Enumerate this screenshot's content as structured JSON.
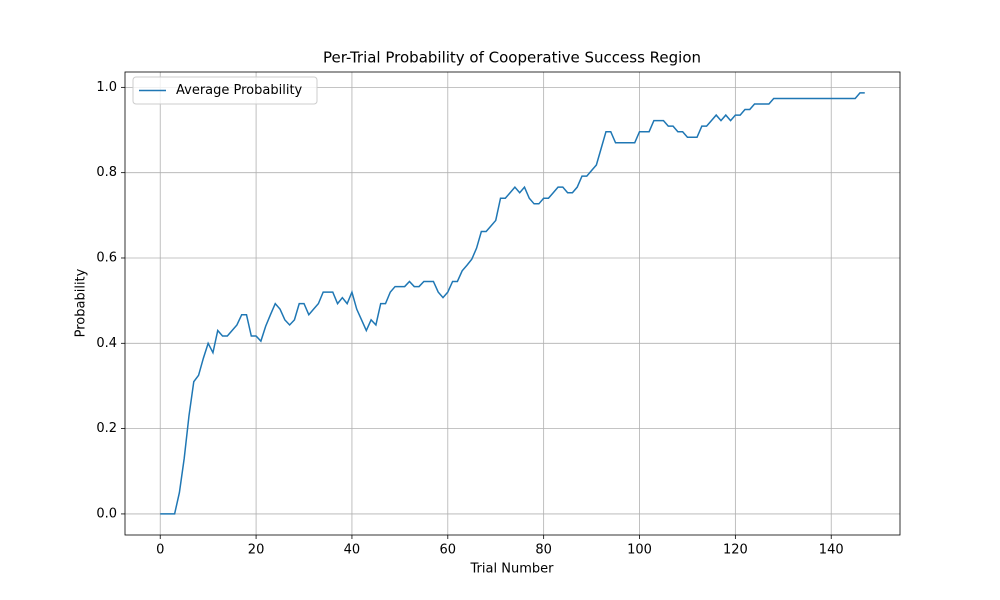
{
  "chart_data": {
    "type": "line",
    "title": "Per-Trial Probability of Cooperative Success Region",
    "x_label": "Trial Number",
    "y_label": "Probability",
    "x": [
      0,
      1,
      2,
      3,
      4,
      5,
      6,
      7,
      8,
      9,
      10,
      11,
      12,
      13,
      14,
      15,
      16,
      17,
      18,
      19,
      20,
      21,
      22,
      23,
      24,
      25,
      26,
      27,
      28,
      29,
      30,
      31,
      32,
      33,
      34,
      35,
      36,
      37,
      38,
      39,
      40,
      41,
      42,
      43,
      44,
      45,
      46,
      47,
      48,
      49,
      50,
      51,
      52,
      53,
      54,
      55,
      56,
      57,
      58,
      59,
      60,
      61,
      62,
      63,
      64,
      65,
      66,
      67,
      68,
      69,
      70,
      71,
      72,
      73,
      74,
      75,
      76,
      77,
      78,
      79,
      80,
      81,
      82,
      83,
      84,
      85,
      86,
      87,
      88,
      89,
      90,
      91,
      92,
      93,
      94,
      95,
      96,
      97,
      98,
      99,
      100,
      101,
      102,
      103,
      104,
      105,
      106,
      107,
      108,
      109,
      110,
      111,
      112,
      113,
      114,
      115,
      116,
      117,
      118,
      119,
      120,
      121,
      122,
      123,
      124,
      125,
      126,
      127,
      128,
      129,
      130,
      131,
      132,
      133,
      134,
      135,
      136,
      137,
      138,
      139,
      140,
      141,
      142,
      143,
      144,
      145,
      146,
      147
    ],
    "series": [
      {
        "name": "Average Probability",
        "color": "#1f77b4",
        "values": [
          0,
          0,
          0,
          0,
          0.05,
          0.13,
          0.23,
          0.31,
          0.325,
          0.365,
          0.4,
          0.378,
          0.43,
          0.417,
          0.417,
          0.43,
          0.443,
          0.467,
          0.467,
          0.417,
          0.417,
          0.405,
          0.44,
          0.467,
          0.493,
          0.48,
          0.455,
          0.443,
          0.455,
          0.493,
          0.493,
          0.467,
          0.48,
          0.493,
          0.52,
          0.52,
          0.52,
          0.493,
          0.507,
          0.493,
          0.52,
          0.48,
          0.455,
          0.43,
          0.455,
          0.443,
          0.493,
          0.493,
          0.52,
          0.533,
          0.533,
          0.533,
          0.545,
          0.533,
          0.533,
          0.545,
          0.545,
          0.545,
          0.52,
          0.507,
          0.52,
          0.545,
          0.545,
          0.57,
          0.583,
          0.597,
          0.623,
          0.662,
          0.662,
          0.675,
          0.688,
          0.74,
          0.74,
          0.753,
          0.766,
          0.753,
          0.766,
          0.74,
          0.727,
          0.727,
          0.74,
          0.74,
          0.753,
          0.766,
          0.766,
          0.753,
          0.753,
          0.766,
          0.792,
          0.792,
          0.805,
          0.818,
          0.857,
          0.896,
          0.896,
          0.87,
          0.87,
          0.87,
          0.87,
          0.87,
          0.896,
          0.896,
          0.896,
          0.922,
          0.922,
          0.922,
          0.909,
          0.909,
          0.896,
          0.896,
          0.883,
          0.883,
          0.883,
          0.909,
          0.909,
          0.922,
          0.935,
          0.922,
          0.935,
          0.922,
          0.935,
          0.935,
          0.948,
          0.948,
          0.961,
          0.961,
          0.961,
          0.961,
          0.974,
          0.974,
          0.974,
          0.974,
          0.974,
          0.974,
          0.974,
          0.974,
          0.974,
          0.974,
          0.974,
          0.974,
          0.974,
          0.974,
          0.974,
          0.974,
          0.974,
          0.974,
          0.987,
          0.987
        ]
      }
    ],
    "xlim": [
      -7.35,
      154.35
    ],
    "ylim": [
      -0.0494,
      1.036
    ],
    "xticks": [
      0,
      20,
      40,
      60,
      80,
      100,
      120,
      140
    ],
    "yticks": [
      {
        "value": 0,
        "label": "0.0"
      },
      0.2,
      0.4,
      0.6,
      0.8,
      {
        "value": 1,
        "label": "1.0"
      }
    ],
    "grid": true,
    "legend": "upper left"
  }
}
